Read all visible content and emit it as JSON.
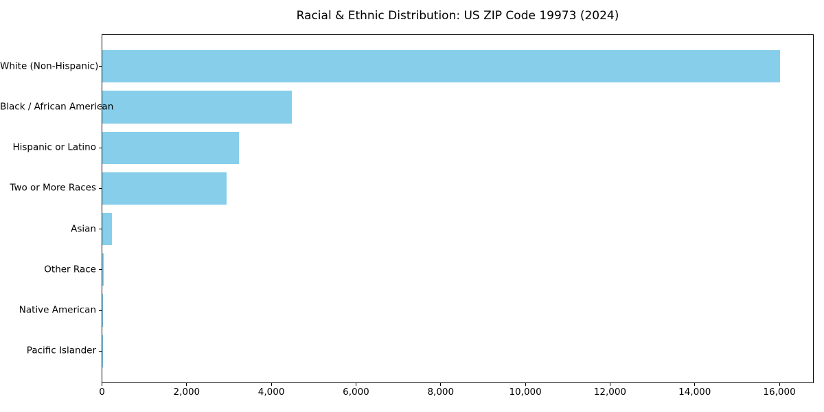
{
  "chart_data": {
    "type": "bar",
    "orientation": "horizontal",
    "title": "Racial & Ethnic Distribution: US ZIP Code 19973 (2024)",
    "categories": [
      "White (Non-Hispanic)",
      "Black / African American",
      "Hispanic or Latino",
      "Two or More Races",
      "Asian",
      "Other Race",
      "Native American",
      "Pacific Islander"
    ],
    "values": [
      16000,
      4480,
      3220,
      2930,
      220,
      25,
      15,
      8
    ],
    "xlabel": "",
    "ylabel": "",
    "xlim": [
      0,
      16810
    ],
    "xticks": [
      {
        "value": 0,
        "label": "0"
      },
      {
        "value": 2000,
        "label": "2,000"
      },
      {
        "value": 4000,
        "label": "4,000"
      },
      {
        "value": 6000,
        "label": "6,000"
      },
      {
        "value": 8000,
        "label": "8,000"
      },
      {
        "value": 10000,
        "label": "10,000"
      },
      {
        "value": 12000,
        "label": "12,000"
      },
      {
        "value": 14000,
        "label": "14,000"
      },
      {
        "value": 16000,
        "label": "16,000"
      }
    ],
    "bar_color": "#87CEEB",
    "grid": false,
    "legend": null,
    "background_color": "#ffffff",
    "spine_color": "#000000"
  }
}
